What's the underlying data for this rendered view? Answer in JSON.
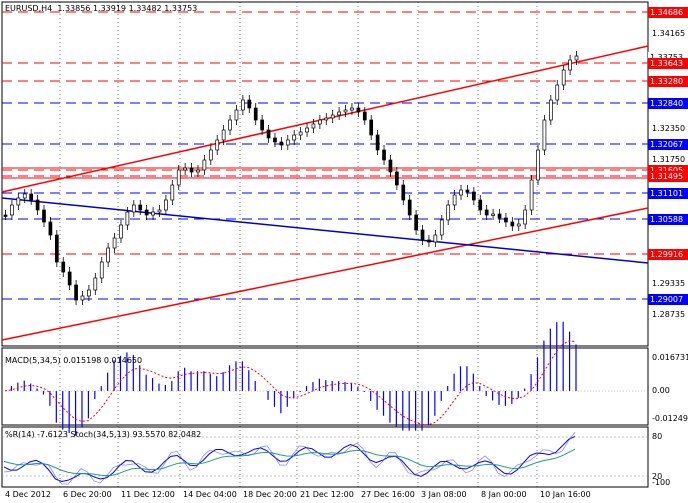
{
  "header": {
    "symbol_tf": "EURUSD,H4",
    "ohlc": "1.33856 1.33919 1.33482 1.33753"
  },
  "levels": {
    "red": [
      "1.34686",
      "1.33643",
      "1.33280",
      "1.31605",
      "1.31495",
      "1.29916"
    ],
    "blue": [
      "1.32840",
      "1.32067",
      "1.31101",
      "1.30588",
      "1.29007"
    ],
    "current": "1.33753"
  },
  "price_axis": [
    "1.34165",
    "1.33953",
    "1.32350",
    "1.31750",
    "1.29335",
    "1.28735"
  ],
  "time_axis": [
    "4 Dec 2012",
    "6 Dec 20:00",
    "11 Dec 12:00",
    "14 Dec 04:00",
    "18 Dec 20:00",
    "21 Dec 12:00",
    "27 Dec 16:00",
    "3 Jan 08:00",
    "8 Jan 00:00",
    "10 Jan 16:00"
  ],
  "macd": {
    "label": "MACD(5,34,5) 0.015198 0.014650",
    "axis": [
      "0.016731",
      "0.00",
      "-0.01249"
    ]
  },
  "stoch": {
    "label": "%R(14) -7.6123  Stoch(34,5,13) 93.5570 82.0482",
    "axis": [
      "80",
      "20",
      "-100"
    ]
  },
  "colors": {
    "up": "#000000",
    "trendline": "#ff0000",
    "support_blue": "#0000cc",
    "level_red": "#ff0000",
    "level_blue": "#0000ff",
    "macd_hist": "#0000ff",
    "macd_signal": "#ff0000",
    "stoch_main": "#0000ff",
    "stoch_signal": "#20a080"
  }
}
